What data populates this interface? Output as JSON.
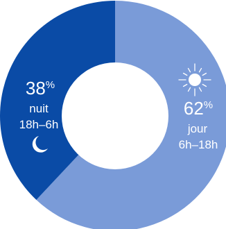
{
  "chart_data": {
    "type": "pie",
    "donut": true,
    "slices": [
      {
        "value": 62,
        "pct": "62",
        "label": "jour",
        "range": "6h–18h",
        "color": "#7a9bd8",
        "icon": "sun-icon"
      },
      {
        "value": 38,
        "pct": "38",
        "label": "nuit",
        "range": "18h–6h",
        "color": "#0a4ba6",
        "icon": "moon-icon"
      }
    ],
    "percent_sign": "%",
    "text_color": "#ffffff",
    "hole_color": "#ffffff"
  }
}
